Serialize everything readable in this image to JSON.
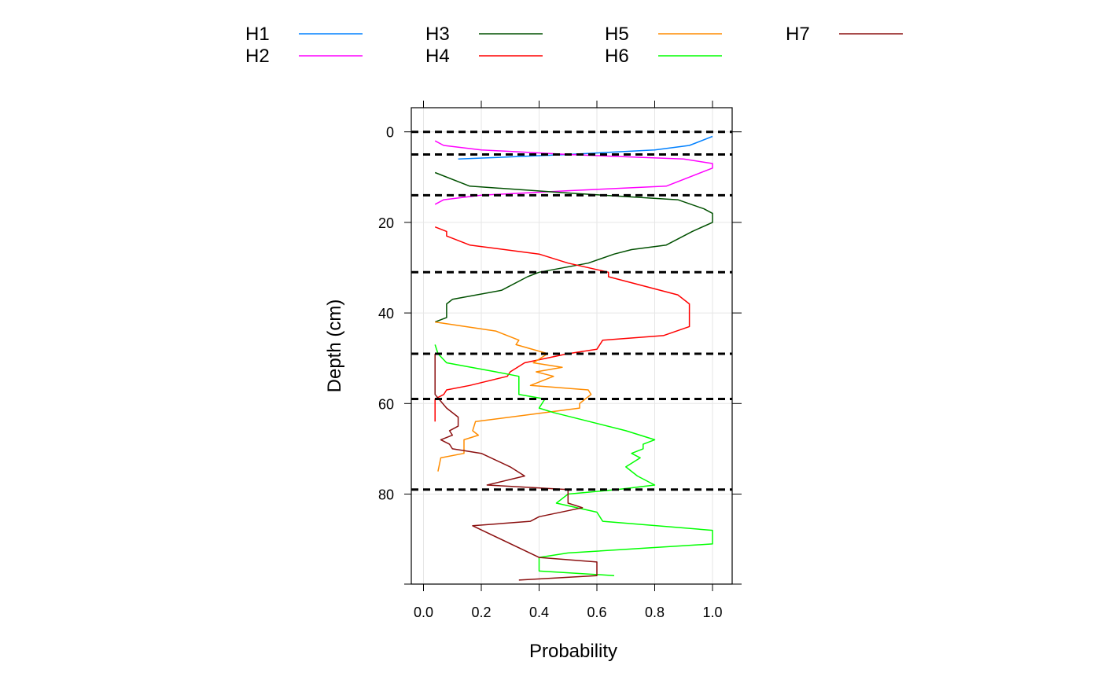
{
  "chart_data": {
    "type": "line",
    "xlabel": "Probability",
    "ylabel": "Depth (cm)",
    "xlim": [
      -0.04,
      1.07
    ],
    "ylim": [
      100,
      -5
    ],
    "xticks": [
      "0.0",
      "0.2",
      "0.4",
      "0.6",
      "0.8",
      "1.0"
    ],
    "xtick_values": [
      0,
      0.2,
      0.4,
      0.6,
      0.8,
      1.0
    ],
    "yticks": [
      "0",
      "20",
      "40",
      "60",
      "80"
    ],
    "ytick_values": [
      0,
      20,
      40,
      60,
      80
    ],
    "grid": true,
    "legend_position": "top",
    "boundaries": [
      0,
      5,
      14,
      31,
      49,
      59,
      79
    ],
    "series": [
      {
        "name": "H1",
        "color": "#0080ff",
        "points": [
          [
            1.0,
            1
          ],
          [
            0.92,
            3
          ],
          [
            0.8,
            4
          ],
          [
            0.5,
            5
          ],
          [
            0.12,
            6
          ]
        ]
      },
      {
        "name": "H2",
        "color": "#ff00ff",
        "points": [
          [
            0.04,
            2
          ],
          [
            0.07,
            3
          ],
          [
            0.2,
            4
          ],
          [
            0.5,
            5
          ],
          [
            0.9,
            6
          ],
          [
            1.0,
            7
          ],
          [
            1.0,
            8
          ],
          [
            0.84,
            12
          ],
          [
            0.5,
            13
          ],
          [
            0.2,
            14
          ],
          [
            0.07,
            15
          ],
          [
            0.04,
            16
          ]
        ]
      },
      {
        "name": "H3",
        "color": "#005000",
        "points": [
          [
            0.04,
            9
          ],
          [
            0.16,
            12
          ],
          [
            0.5,
            13.5
          ],
          [
            0.88,
            15
          ],
          [
            0.97,
            17
          ],
          [
            1.0,
            18
          ],
          [
            1.0,
            20
          ],
          [
            0.93,
            22
          ],
          [
            0.84,
            25
          ],
          [
            0.72,
            26
          ],
          [
            0.66,
            27
          ],
          [
            0.57,
            29
          ],
          [
            0.4,
            31
          ],
          [
            0.36,
            32
          ],
          [
            0.27,
            35
          ],
          [
            0.1,
            37
          ],
          [
            0.08,
            38
          ],
          [
            0.08,
            41
          ],
          [
            0.04,
            42
          ]
        ]
      },
      {
        "name": "H4",
        "color": "#ff0000",
        "points": [
          [
            0.04,
            21
          ],
          [
            0.08,
            22
          ],
          [
            0.08,
            23
          ],
          [
            0.16,
            25
          ],
          [
            0.4,
            27
          ],
          [
            0.5,
            29
          ],
          [
            0.64,
            31
          ],
          [
            0.64,
            32
          ],
          [
            0.88,
            36
          ],
          [
            0.92,
            38
          ],
          [
            0.92,
            43
          ],
          [
            0.83,
            45
          ],
          [
            0.62,
            46
          ],
          [
            0.6,
            48
          ],
          [
            0.5,
            49
          ],
          [
            0.35,
            51
          ],
          [
            0.3,
            53
          ],
          [
            0.29,
            54
          ],
          [
            0.16,
            56
          ],
          [
            0.08,
            57
          ],
          [
            0.07,
            58
          ],
          [
            0.04,
            59
          ],
          [
            0.04,
            64
          ]
        ]
      },
      {
        "name": "H5",
        "color": "#ff8c00",
        "points": [
          [
            0.04,
            42
          ],
          [
            0.25,
            44
          ],
          [
            0.33,
            46
          ],
          [
            0.32,
            47
          ],
          [
            0.43,
            49
          ],
          [
            0.38,
            51
          ],
          [
            0.48,
            52
          ],
          [
            0.39,
            53
          ],
          [
            0.45,
            54
          ],
          [
            0.37,
            56
          ],
          [
            0.57,
            57
          ],
          [
            0.58,
            58
          ],
          [
            0.56,
            59
          ],
          [
            0.54,
            60
          ],
          [
            0.54,
            61
          ],
          [
            0.18,
            64
          ],
          [
            0.17,
            66
          ],
          [
            0.19,
            67
          ],
          [
            0.14,
            68
          ],
          [
            0.14,
            71
          ],
          [
            0.06,
            72
          ],
          [
            0.05,
            75
          ]
        ]
      },
      {
        "name": "H6",
        "color": "#00ff00",
        "points": [
          [
            0.04,
            47
          ],
          [
            0.05,
            49
          ],
          [
            0.08,
            51
          ],
          [
            0.25,
            53
          ],
          [
            0.33,
            54
          ],
          [
            0.33,
            58
          ],
          [
            0.42,
            59
          ],
          [
            0.4,
            61
          ],
          [
            0.45,
            62
          ],
          [
            0.7,
            66
          ],
          [
            0.8,
            68
          ],
          [
            0.76,
            69
          ],
          [
            0.76,
            70
          ],
          [
            0.72,
            71
          ],
          [
            0.75,
            72
          ],
          [
            0.7,
            74
          ],
          [
            0.74,
            76
          ],
          [
            0.8,
            78
          ],
          [
            0.67,
            79
          ],
          [
            0.5,
            80
          ],
          [
            0.46,
            82
          ],
          [
            0.6,
            84
          ],
          [
            0.62,
            86
          ],
          [
            1.0,
            88
          ],
          [
            1.0,
            91
          ],
          [
            0.5,
            93
          ],
          [
            0.4,
            94
          ],
          [
            0.4,
            97
          ],
          [
            0.66,
            98
          ]
        ]
      },
      {
        "name": "H7",
        "color": "#8b1010",
        "points": [
          [
            0.04,
            49
          ],
          [
            0.04,
            58
          ],
          [
            0.08,
            61
          ],
          [
            0.12,
            63
          ],
          [
            0.12,
            65
          ],
          [
            0.09,
            66
          ],
          [
            0.1,
            67
          ],
          [
            0.06,
            68
          ],
          [
            0.09,
            69
          ],
          [
            0.1,
            70
          ],
          [
            0.2,
            71
          ],
          [
            0.3,
            74
          ],
          [
            0.35,
            76
          ],
          [
            0.22,
            78
          ],
          [
            0.5,
            79
          ],
          [
            0.5,
            82
          ],
          [
            0.55,
            83
          ],
          [
            0.4,
            85
          ],
          [
            0.37,
            86
          ],
          [
            0.17,
            87
          ],
          [
            0.4,
            94
          ],
          [
            0.6,
            95
          ],
          [
            0.6,
            98
          ],
          [
            0.33,
            99
          ]
        ]
      }
    ]
  }
}
